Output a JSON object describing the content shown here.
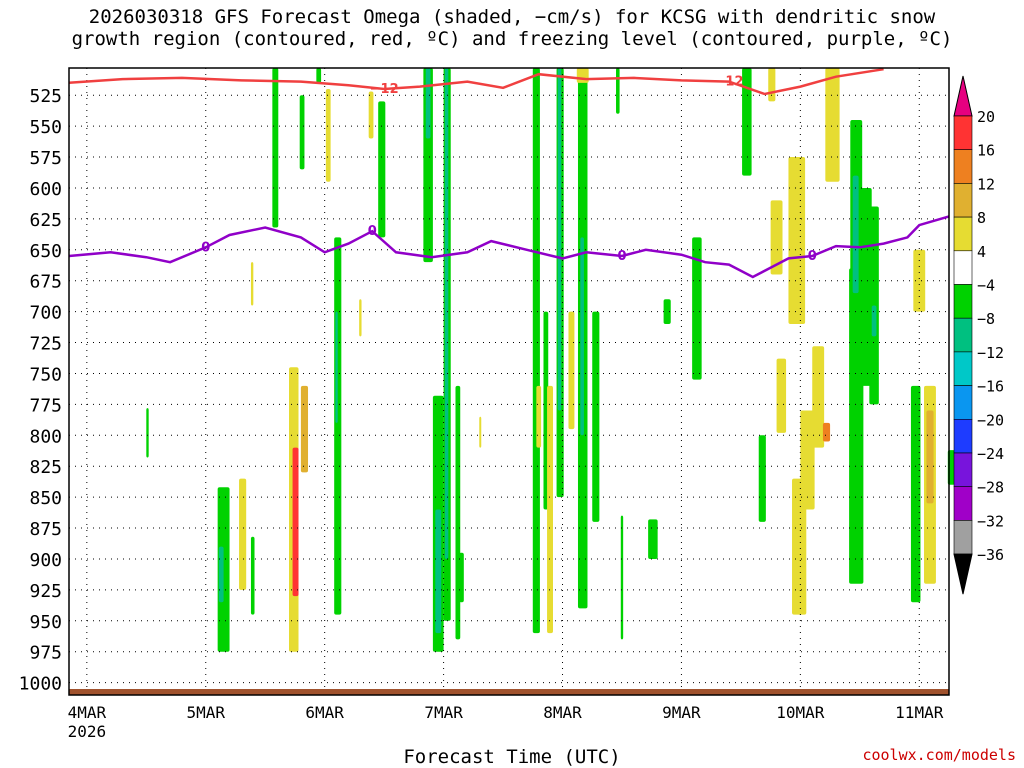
{
  "chart_data": {
    "type": "heatmap",
    "title_lines": [
      "2026030318 GFS Forecast Omega (shaded, −cm/s) for KCSG with dendritic snow",
      "growth region (contoured, red, ºC) and freezing level (contoured, purple, ºC)"
    ],
    "xlabel": "Forecast Time (UTC)",
    "credit": "coolwx.com/models",
    "x_ticks": [
      "4MAR",
      "5MAR",
      "6MAR",
      "7MAR",
      "8MAR",
      "9MAR",
      "10MAR",
      "11MAR"
    ],
    "x_first_year": "2026",
    "x_range_days": [
      3.85,
      11.25
    ],
    "y_ticks": [
      525,
      550,
      575,
      600,
      625,
      650,
      675,
      700,
      725,
      750,
      775,
      800,
      825,
      850,
      875,
      900,
      925,
      950,
      975,
      1000
    ],
    "y_range_hpa": [
      503,
      1010
    ],
    "grid": "dotted",
    "colorbar": {
      "labels": [
        "20",
        "16",
        "12",
        "8",
        "4",
        "−4",
        "−8",
        "−12",
        "−16",
        "−20",
        "−24",
        "−28",
        "−32",
        "−36"
      ],
      "colors": [
        "#e60080",
        "#ff3333",
        "#ee8020",
        "#e0b030",
        "#e6dc32",
        "#ffffff",
        "#00d200",
        "#00c080",
        "#00c8c8",
        "#0a96f0",
        "#1e3cff",
        "#7814dc",
        "#a000c8",
        "#a0a0a0",
        "#000000"
      ]
    },
    "red_contour": {
      "label": "−12",
      "color": "#f04040",
      "points": [
        [
          3.85,
          515
        ],
        [
          4.3,
          512
        ],
        [
          4.8,
          511
        ],
        [
          5.3,
          513
        ],
        [
          5.8,
          514
        ],
        [
          6.2,
          517
        ],
        [
          6.5,
          520
        ],
        [
          6.8,
          518
        ],
        [
          7.2,
          514
        ],
        [
          7.5,
          519
        ],
        [
          7.8,
          508
        ],
        [
          8.2,
          512
        ],
        [
          8.6,
          511
        ],
        [
          9.0,
          513
        ],
        [
          9.4,
          514
        ],
        [
          9.7,
          524
        ],
        [
          10.0,
          518
        ],
        [
          10.3,
          510
        ],
        [
          10.7,
          504
        ]
      ]
    },
    "purple_contour": {
      "label": "0",
      "color": "#9000c8",
      "points": [
        [
          3.85,
          655
        ],
        [
          4.2,
          652
        ],
        [
          4.5,
          656
        ],
        [
          4.7,
          660
        ],
        [
          5.0,
          648
        ],
        [
          5.2,
          638
        ],
        [
          5.5,
          632
        ],
        [
          5.8,
          640
        ],
        [
          6.0,
          652
        ],
        [
          6.2,
          645
        ],
        [
          6.4,
          635
        ],
        [
          6.6,
          652
        ],
        [
          6.9,
          656
        ],
        [
          7.2,
          652
        ],
        [
          7.4,
          643
        ],
        [
          7.7,
          650
        ],
        [
          8.0,
          657
        ],
        [
          8.2,
          652
        ],
        [
          8.5,
          655
        ],
        [
          8.7,
          650
        ],
        [
          9.0,
          654
        ],
        [
          9.2,
          660
        ],
        [
          9.4,
          662
        ],
        [
          9.6,
          672
        ],
        [
          9.9,
          657
        ],
        [
          10.1,
          655
        ],
        [
          10.3,
          647
        ],
        [
          10.5,
          648
        ],
        [
          10.7,
          645
        ],
        [
          10.9,
          640
        ],
        [
          11.0,
          630
        ],
        [
          11.25,
          623
        ]
      ]
    },
    "omega_shading": [
      {
        "x": 4.5,
        "w": 0.02,
        "p": [
          778,
          818
        ],
        "color": "#00d200"
      },
      {
        "x": 5.1,
        "w": 0.1,
        "p": [
          842,
          975
        ],
        "color": "#00d200"
      },
      {
        "x": 5.11,
        "w": 0.04,
        "p": [
          890,
          935
        ],
        "color": "#00c080"
      },
      {
        "x": 5.28,
        "w": 0.06,
        "p": [
          835,
          925
        ],
        "color": "#e6dc32"
      },
      {
        "x": 5.38,
        "w": 0.03,
        "p": [
          882,
          945
        ],
        "color": "#00d200"
      },
      {
        "x": 5.38,
        "w": 0.02,
        "p": [
          660,
          695
        ],
        "color": "#e6dc32"
      },
      {
        "x": 5.56,
        "w": 0.05,
        "p": [
          503,
          632
        ],
        "color": "#00d200"
      },
      {
        "x": 5.7,
        "w": 0.08,
        "p": [
          745,
          975
        ],
        "color": "#e6dc32"
      },
      {
        "x": 5.73,
        "w": 0.05,
        "p": [
          810,
          930
        ],
        "color": "#ff3333"
      },
      {
        "x": 5.8,
        "w": 0.06,
        "p": [
          760,
          830
        ],
        "color": "#e0b030"
      },
      {
        "x": 5.79,
        "w": 0.04,
        "p": [
          525,
          585
        ],
        "color": "#00d200"
      },
      {
        "x": 5.93,
        "w": 0.04,
        "p": [
          503,
          515
        ],
        "color": "#00d200"
      },
      {
        "x": 6.01,
        "w": 0.04,
        "p": [
          520,
          595
        ],
        "color": "#e6dc32"
      },
      {
        "x": 6.08,
        "w": 0.06,
        "p": [
          640,
          945
        ],
        "color": "#00d200"
      },
      {
        "x": 6.09,
        "w": 0.02,
        "p": [
          700,
          790
        ],
        "color": "#00c080"
      },
      {
        "x": 6.29,
        "w": 0.02,
        "p": [
          690,
          720
        ],
        "color": "#e6dc32"
      },
      {
        "x": 6.37,
        "w": 0.04,
        "p": [
          522,
          560
        ],
        "color": "#e6dc32"
      },
      {
        "x": 6.45,
        "w": 0.06,
        "p": [
          530,
          640
        ],
        "color": "#00d200"
      },
      {
        "x": 6.83,
        "w": 0.08,
        "p": [
          503,
          660
        ],
        "color": "#00d200"
      },
      {
        "x": 6.85,
        "w": 0.04,
        "p": [
          503,
          560
        ],
        "color": "#00c080"
      },
      {
        "x": 6.91,
        "w": 0.09,
        "p": [
          768,
          975
        ],
        "color": "#00d200"
      },
      {
        "x": 6.93,
        "w": 0.05,
        "p": [
          860,
          960
        ],
        "color": "#00c080"
      },
      {
        "x": 7.0,
        "w": 0.06,
        "p": [
          503,
          950
        ],
        "color": "#00d200"
      },
      {
        "x": 7.01,
        "w": 0.03,
        "p": [
          503,
          900
        ],
        "color": "#00c080"
      },
      {
        "x": 7.1,
        "w": 0.04,
        "p": [
          760,
          965
        ],
        "color": "#00d200"
      },
      {
        "x": 7.13,
        "w": 0.04,
        "p": [
          895,
          935
        ],
        "color": "#00d200"
      },
      {
        "x": 7.3,
        "w": 0.01,
        "p": [
          785,
          810
        ],
        "color": "#e6dc32"
      },
      {
        "x": 7.75,
        "w": 0.06,
        "p": [
          503,
          960
        ],
        "color": "#00d200"
      },
      {
        "x": 7.78,
        "w": 0.04,
        "p": [
          760,
          810
        ],
        "color": "#e6dc32"
      },
      {
        "x": 7.84,
        "w": 0.04,
        "p": [
          700,
          860
        ],
        "color": "#00d200"
      },
      {
        "x": 7.87,
        "w": 0.05,
        "p": [
          760,
          960
        ],
        "color": "#e6dc32"
      },
      {
        "x": 7.95,
        "w": 0.06,
        "p": [
          503,
          850
        ],
        "color": "#00d200"
      },
      {
        "x": 7.96,
        "w": 0.03,
        "p": [
          503,
          780
        ],
        "color": "#00c080"
      },
      {
        "x": 8.05,
        "w": 0.05,
        "p": [
          700,
          795
        ],
        "color": "#e6dc32"
      },
      {
        "x": 8.13,
        "w": 0.08,
        "p": [
          503,
          940
        ],
        "color": "#00d200"
      },
      {
        "x": 8.15,
        "w": 0.03,
        "p": [
          640,
          800
        ],
        "color": "#00c080"
      },
      {
        "x": 8.25,
        "w": 0.06,
        "p": [
          700,
          870
        ],
        "color": "#00d200"
      },
      {
        "x": 8.12,
        "w": 0.1,
        "p": [
          503,
          515
        ],
        "color": "#e6dc32"
      },
      {
        "x": 8.45,
        "w": 0.03,
        "p": [
          503,
          540
        ],
        "color": "#00d200"
      },
      {
        "x": 8.49,
        "w": 0.02,
        "p": [
          865,
          965
        ],
        "color": "#00d200"
      },
      {
        "x": 8.72,
        "w": 0.08,
        "p": [
          868,
          900
        ],
        "color": "#00d200"
      },
      {
        "x": 8.85,
        "w": 0.06,
        "p": [
          690,
          710
        ],
        "color": "#00d200"
      },
      {
        "x": 9.09,
        "w": 0.08,
        "p": [
          640,
          755
        ],
        "color": "#00d200"
      },
      {
        "x": 9.51,
        "w": 0.08,
        "p": [
          503,
          590
        ],
        "color": "#00d200"
      },
      {
        "x": 9.65,
        "w": 0.06,
        "p": [
          800,
          870
        ],
        "color": "#00d200"
      },
      {
        "x": 9.73,
        "w": 0.06,
        "p": [
          503,
          530
        ],
        "color": "#e6dc32"
      },
      {
        "x": 9.75,
        "w": 0.1,
        "p": [
          610,
          670
        ],
        "color": "#e6dc32"
      },
      {
        "x": 9.8,
        "w": 0.08,
        "p": [
          738,
          798
        ],
        "color": "#e6dc32"
      },
      {
        "x": 9.9,
        "w": 0.14,
        "p": [
          575,
          710
        ],
        "color": "#e6dc32"
      },
      {
        "x": 9.93,
        "w": 0.12,
        "p": [
          835,
          945
        ],
        "color": "#e6dc32"
      },
      {
        "x": 10.0,
        "w": 0.12,
        "p": [
          780,
          860
        ],
        "color": "#e6dc32"
      },
      {
        "x": 10.1,
        "w": 0.1,
        "p": [
          728,
          810
        ],
        "color": "#e6dc32"
      },
      {
        "x": 10.19,
        "w": 0.06,
        "p": [
          790,
          805
        ],
        "color": "#ee8020"
      },
      {
        "x": 10.21,
        "w": 0.12,
        "p": [
          503,
          595
        ],
        "color": "#e6dc32"
      },
      {
        "x": 10.42,
        "w": 0.1,
        "p": [
          545,
          720
        ],
        "color": "#00d200"
      },
      {
        "x": 10.41,
        "w": 0.12,
        "p": [
          665,
          920
        ],
        "color": "#00d200"
      },
      {
        "x": 10.44,
        "w": 0.05,
        "p": [
          590,
          685
        ],
        "color": "#00c080"
      },
      {
        "x": 10.5,
        "w": 0.1,
        "p": [
          600,
          760
        ],
        "color": "#00d200"
      },
      {
        "x": 10.58,
        "w": 0.08,
        "p": [
          615,
          775
        ],
        "color": "#00d200"
      },
      {
        "x": 10.6,
        "w": 0.04,
        "p": [
          695,
          720
        ],
        "color": "#00c080"
      },
      {
        "x": 10.93,
        "w": 0.08,
        "p": [
          760,
          935
        ],
        "color": "#00d200"
      },
      {
        "x": 10.95,
        "w": 0.1,
        "p": [
          650,
          700
        ],
        "color": "#e6dc32"
      },
      {
        "x": 11.04,
        "w": 0.1,
        "p": [
          760,
          920
        ],
        "color": "#e6dc32"
      },
      {
        "x": 11.06,
        "w": 0.06,
        "p": [
          780,
          855
        ],
        "color": "#e0b030"
      },
      {
        "x": 11.24,
        "w": 0.06,
        "p": [
          812,
          840
        ],
        "color": "#00d200"
      }
    ]
  }
}
